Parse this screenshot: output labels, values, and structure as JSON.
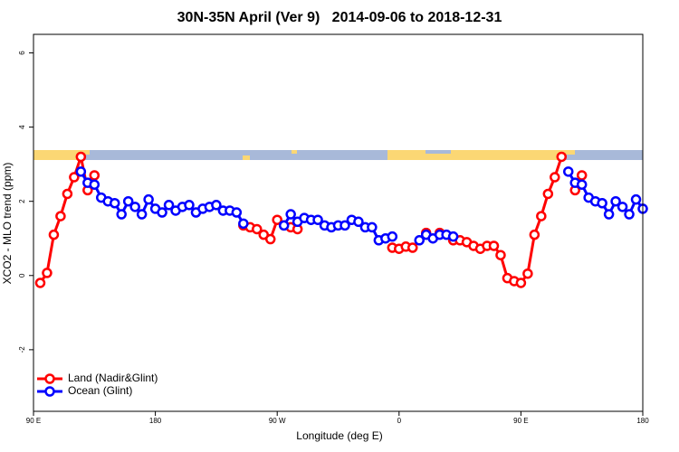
{
  "chart_data": {
    "type": "line",
    "title": "30N-35N April (Ver 9)   2014-09-06 to 2018-12-31",
    "x_label": "Longitude (deg E)",
    "y_label": "XCO2 - MLO trend (ppm)",
    "xlim": [
      90,
      540
    ],
    "xticks": [
      {
        "value": 90,
        "label": "90 E"
      },
      180,
      {
        "value": 270,
        "label": "90 W"
      },
      {
        "value": 360,
        "label": "0"
      },
      {
        "value": 450,
        "label": "90 E"
      },
      {
        "value": 540,
        "label": "180"
      }
    ],
    "ylim": [
      -3.66,
      6.5
    ],
    "yticks": [
      -2,
      0,
      2,
      4,
      6
    ],
    "legend": "bottomleft",
    "x": [
      95,
      100,
      105,
      110,
      115,
      120,
      125,
      130,
      135,
      140,
      145,
      150,
      155,
      160,
      165,
      170,
      175,
      180,
      185,
      190,
      195,
      200,
      205,
      210,
      215,
      220,
      225,
      230,
      235,
      240,
      245,
      250,
      255,
      260,
      265,
      270,
      275,
      280,
      285,
      290,
      295,
      300,
      305,
      310,
      315,
      320,
      325,
      330,
      335,
      340,
      345,
      350,
      355,
      360,
      365,
      370,
      375,
      380,
      385,
      390,
      395,
      400,
      405,
      410,
      415,
      420,
      425,
      430,
      435,
      440,
      445,
      450,
      455,
      460,
      465,
      470,
      475,
      480,
      485,
      490,
      495,
      500,
      505,
      510,
      515,
      520,
      525,
      530,
      535,
      540
    ],
    "series": [
      {
        "name": "Land (Nadir&Glint)",
        "color": "#ff0000",
        "values": [
          -0.2,
          0.07,
          1.1,
          1.6,
          2.2,
          2.65,
          3.2,
          2.3,
          2.7,
          null,
          null,
          null,
          null,
          null,
          null,
          null,
          null,
          null,
          null,
          null,
          null,
          null,
          null,
          null,
          null,
          null,
          null,
          null,
          null,
          null,
          1.35,
          1.3,
          1.25,
          1.1,
          0.98,
          1.5,
          1.35,
          1.3,
          1.25,
          null,
          null,
          null,
          null,
          null,
          null,
          null,
          null,
          null,
          null,
          null,
          null,
          null,
          0.75,
          0.72,
          0.78,
          0.75,
          null,
          1.15,
          null,
          1.15,
          null,
          0.95,
          0.95,
          0.9,
          0.8,
          0.72,
          0.8,
          0.8,
          0.55,
          -0.07,
          -0.15,
          -0.2,
          0.05,
          1.1,
          1.6,
          2.2,
          2.65,
          3.2,
          null,
          2.3,
          2.7,
          null,
          null,
          null,
          null,
          null,
          null,
          null,
          null,
          null
        ]
      },
      {
        "name": "Ocean (Glint)",
        "color": "#0000ff",
        "values": [
          null,
          null,
          null,
          null,
          null,
          null,
          2.8,
          2.5,
          2.45,
          2.1,
          2.0,
          1.95,
          1.65,
          2.0,
          1.85,
          1.65,
          2.05,
          1.8,
          1.7,
          1.9,
          1.75,
          1.85,
          1.9,
          1.7,
          1.8,
          1.85,
          1.9,
          1.75,
          1.75,
          1.7,
          1.4,
          null,
          null,
          null,
          null,
          null,
          1.35,
          1.65,
          1.45,
          1.55,
          1.5,
          1.5,
          1.35,
          1.3,
          1.35,
          1.35,
          1.5,
          1.45,
          1.3,
          1.3,
          0.95,
          1.0,
          1.05,
          null,
          null,
          null,
          0.95,
          1.1,
          1.0,
          1.1,
          1.1,
          1.05,
          null,
          null,
          null,
          null,
          null,
          null,
          null,
          null,
          null,
          null,
          null,
          null,
          null,
          null,
          null,
          null,
          2.8,
          2.5,
          2.45,
          2.1,
          2.0,
          1.95,
          1.65,
          2.0,
          1.85,
          1.65,
          2.05,
          1.8
        ]
      }
    ]
  }
}
